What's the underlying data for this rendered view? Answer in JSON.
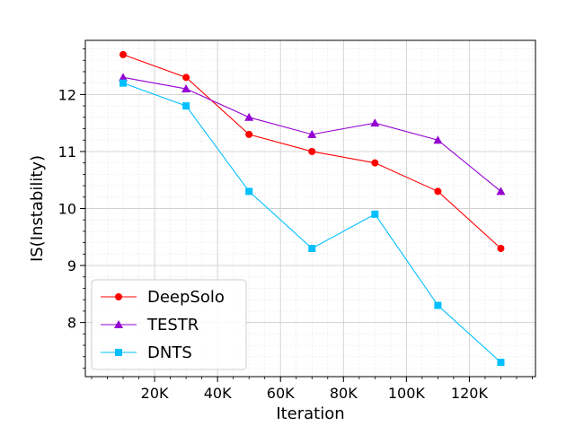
{
  "chart_data": {
    "type": "line",
    "title": "",
    "xlabel": "Iteration",
    "ylabel": "IS(Instability)",
    "x": [
      10000,
      30000,
      50000,
      70000,
      90000,
      110000,
      130000
    ],
    "x_ticks": [
      20000,
      40000,
      60000,
      80000,
      100000,
      120000
    ],
    "x_tick_labels": [
      "20K",
      "40K",
      "60K",
      "80K",
      "100K",
      "120K"
    ],
    "xlim": [
      -2000,
      141000
    ],
    "y_ticks": [
      8,
      9,
      10,
      11,
      12
    ],
    "y_tick_labels": [
      "8",
      "9",
      "10",
      "11",
      "12"
    ],
    "ylim": [
      7.05,
      12.95
    ],
    "grid": true,
    "legend_position": "lower-left",
    "series": [
      {
        "name": "DeepSolo",
        "color": "#ff0000",
        "marker": "circle",
        "values": [
          12.7,
          12.3,
          11.3,
          11.0,
          10.8,
          10.3,
          9.3
        ]
      },
      {
        "name": "TESTR",
        "color": "#9400d3",
        "marker": "triangle",
        "values": [
          12.3,
          12.1,
          11.6,
          11.3,
          11.5,
          11.2,
          10.3
        ]
      },
      {
        "name": "DNTS",
        "color": "#00bfff",
        "marker": "square",
        "values": [
          12.2,
          11.8,
          10.3,
          9.3,
          9.9,
          8.3,
          7.3
        ]
      }
    ]
  }
}
